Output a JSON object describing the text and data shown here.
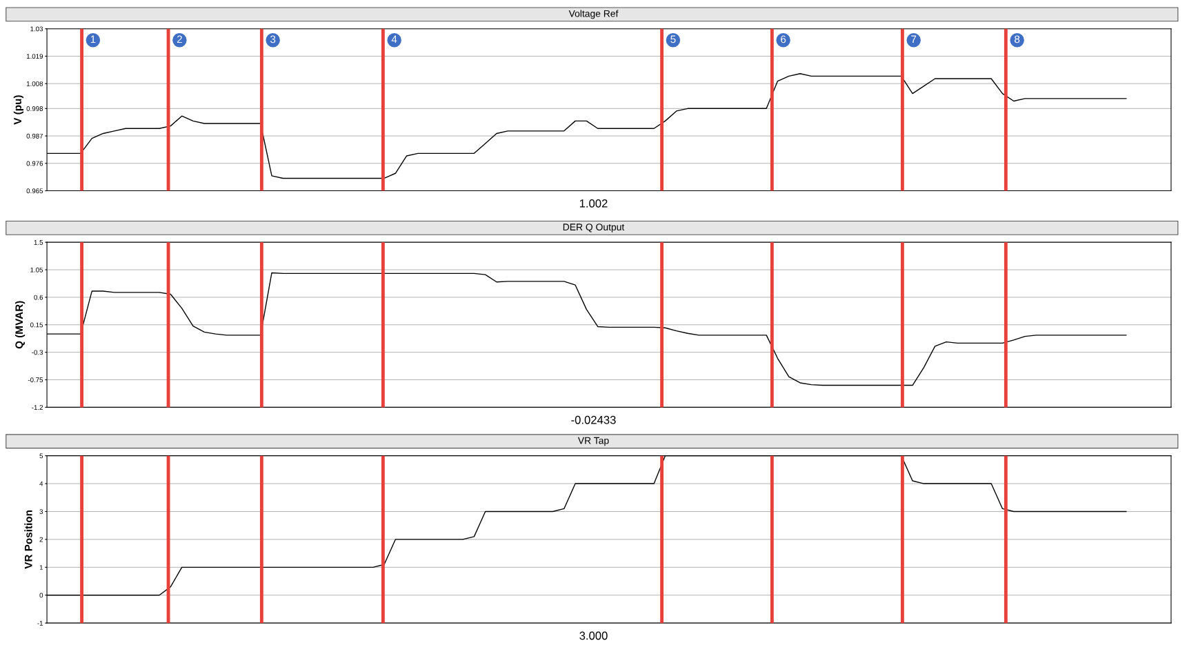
{
  "chart_data": [
    {
      "type": "line",
      "title": "Voltage Ref",
      "ylabel": "V (pu)",
      "categories": [
        null,
        null,
        null,
        null,
        null,
        null,
        null,
        null,
        null,
        null,
        null,
        null,
        null,
        null,
        null,
        null,
        null,
        null,
        null,
        null,
        null,
        null,
        null,
        null,
        null,
        null,
        null,
        null,
        null,
        null,
        null,
        null,
        null,
        null,
        null,
        null,
        null,
        null,
        null,
        null,
        null,
        null,
        null,
        null,
        null,
        null,
        null,
        null,
        null,
        null,
        null,
        null,
        null,
        null,
        null,
        null,
        null,
        null,
        null,
        null,
        null,
        null,
        null,
        null,
        null,
        null,
        null,
        null,
        null,
        null,
        null,
        null,
        null,
        null,
        null,
        null,
        null,
        null,
        null,
        null,
        null,
        null,
        null,
        null,
        null,
        null,
        null,
        null,
        null,
        null,
        null,
        null,
        null,
        null,
        null,
        null,
        null,
        null,
        null,
        null,
        null
      ],
      "series": [
        {
          "color": "#000000",
          "values": [
            0.98,
            0.98,
            0.98,
            0.98,
            0.986,
            0.988,
            0.989,
            0.99,
            0.99,
            0.99,
            0.99,
            0.991,
            0.995,
            0.993,
            0.992,
            0.992,
            0.992,
            0.992,
            0.992,
            0.992,
            0.971,
            0.97,
            0.97,
            0.97,
            0.97,
            0.97,
            0.97,
            0.97,
            0.97,
            0.97,
            0.97,
            0.972,
            0.979,
            0.98,
            0.98,
            0.98,
            0.98,
            0.98,
            0.98,
            0.984,
            0.988,
            0.989,
            0.989,
            0.989,
            0.989,
            0.989,
            0.989,
            0.993,
            0.993,
            0.99,
            0.99,
            0.99,
            0.99,
            0.99,
            0.99,
            0.993,
            0.997,
            0.998,
            0.998,
            0.998,
            0.998,
            0.998,
            0.998,
            0.998,
            0.998,
            1.009,
            1.011,
            1.012,
            1.011,
            1.011,
            1.011,
            1.011,
            1.011,
            1.011,
            1.011,
            1.011,
            1.011,
            1.004,
            1.007,
            1.01,
            1.01,
            1.01,
            1.01,
            1.01,
            1.01,
            1.004,
            1.001,
            1.002,
            1.002,
            1.002,
            1.002,
            1.002,
            1.002,
            1.002,
            1.002,
            1.002,
            1.002,
            null,
            null,
            null,
            null
          ]
        }
      ],
      "ylim": [
        0.965,
        1.03
      ],
      "yticks": [
        0.965,
        0.976,
        0.987,
        0.998,
        1.008,
        1.019,
        1.03
      ],
      "grid": "y",
      "tick_labels": "y",
      "annotations": [
        "1",
        "2",
        "3",
        "4",
        "5",
        "6",
        "7",
        "8",
        "1.002"
      ]
    },
    {
      "type": "line",
      "title": "DER Q Output",
      "ylabel": "Q (MVAR)",
      "categories": [
        null,
        null,
        null,
        null,
        null,
        null,
        null,
        null,
        null,
        null,
        null,
        null,
        null,
        null,
        null,
        null,
        null,
        null,
        null,
        null,
        null,
        null,
        null,
        null,
        null,
        null,
        null,
        null,
        null,
        null,
        null,
        null,
        null,
        null,
        null,
        null,
        null,
        null,
        null,
        null,
        null,
        null,
        null,
        null,
        null,
        null,
        null,
        null,
        null,
        null,
        null,
        null,
        null,
        null,
        null,
        null,
        null,
        null,
        null,
        null,
        null,
        null,
        null,
        null,
        null,
        null,
        null,
        null,
        null,
        null,
        null,
        null,
        null,
        null,
        null,
        null,
        null,
        null,
        null,
        null,
        null,
        null,
        null,
        null,
        null,
        null,
        null,
        null,
        null,
        null,
        null,
        null,
        null,
        null,
        null,
        null,
        null,
        null,
        null,
        null,
        null
      ],
      "series": [
        {
          "color": "#000000",
          "values": [
            0.0,
            0.0,
            0.0,
            0.0,
            0.7,
            0.7,
            0.68,
            0.68,
            0.68,
            0.68,
            0.68,
            0.65,
            0.42,
            0.13,
            0.03,
            0.0,
            -0.02,
            -0.02,
            -0.02,
            -0.02,
            1.0,
            0.99,
            0.99,
            0.99,
            0.99,
            0.99,
            0.99,
            0.99,
            0.99,
            0.99,
            0.99,
            0.99,
            0.99,
            0.99,
            0.99,
            0.99,
            0.99,
            0.99,
            0.99,
            0.97,
            0.85,
            0.86,
            0.86,
            0.86,
            0.86,
            0.86,
            0.86,
            0.8,
            0.4,
            0.12,
            0.11,
            0.11,
            0.11,
            0.11,
            0.11,
            0.1,
            0.05,
            0.01,
            -0.02,
            -0.02,
            -0.02,
            -0.02,
            -0.02,
            -0.02,
            -0.02,
            -0.4,
            -0.7,
            -0.8,
            -0.83,
            -0.84,
            -0.84,
            -0.84,
            -0.84,
            -0.84,
            -0.84,
            -0.84,
            -0.84,
            -0.84,
            -0.55,
            -0.2,
            -0.13,
            -0.15,
            -0.15,
            -0.15,
            -0.15,
            -0.15,
            -0.1,
            -0.04,
            -0.02,
            -0.02,
            -0.02,
            -0.02,
            -0.02,
            -0.02,
            -0.02,
            -0.02,
            -0.02,
            null,
            null,
            null,
            null
          ]
        }
      ],
      "ylim": [
        -1.2,
        1.5
      ],
      "yticks": [
        -1.2,
        -0.75,
        -0.3,
        0.15,
        0.6,
        1.05,
        1.5
      ],
      "grid": "y",
      "tick_labels": "y",
      "annotations": [
        "-0.02433"
      ]
    },
    {
      "type": "line",
      "title": "VR Tap",
      "ylabel": "VR Position",
      "categories": [
        null,
        null,
        null,
        null,
        null,
        null,
        null,
        null,
        null,
        null,
        null,
        null,
        null,
        null,
        null,
        null,
        null,
        null,
        null,
        null,
        null,
        null,
        null,
        null,
        null,
        null,
        null,
        null,
        null,
        null,
        null,
        null,
        null,
        null,
        null,
        null,
        null,
        null,
        null,
        null,
        null,
        null,
        null,
        null,
        null,
        null,
        null,
        null,
        null,
        null,
        null,
        null,
        null,
        null,
        null,
        null,
        null,
        null,
        null,
        null,
        null,
        null,
        null,
        null,
        null,
        null,
        null,
        null,
        null,
        null,
        null,
        null,
        null,
        null,
        null,
        null,
        null,
        null,
        null,
        null,
        null,
        null,
        null,
        null,
        null,
        null,
        null,
        null,
        null,
        null,
        null,
        null,
        null,
        null,
        null,
        null,
        null,
        null,
        null,
        null,
        null
      ],
      "series": [
        {
          "color": "#000000",
          "values": [
            0,
            0,
            0,
            0,
            0,
            0,
            0,
            0,
            0,
            0,
            0,
            0.3,
            1,
            1,
            1,
            1,
            1,
            1,
            1,
            1,
            1,
            1,
            1,
            1,
            1,
            1,
            1,
            1,
            1,
            1,
            1.1,
            2,
            2,
            2,
            2,
            2,
            2,
            2,
            2.1,
            3,
            3,
            3,
            3,
            3,
            3,
            3,
            3.1,
            4,
            4,
            4,
            4,
            4,
            4,
            4,
            4,
            5,
            5,
            5,
            5,
            5,
            5,
            5,
            5,
            5,
            5,
            5,
            5,
            5,
            5,
            5,
            5,
            5,
            5,
            5,
            5,
            5,
            5,
            4.1,
            4,
            4,
            4,
            4,
            4,
            4,
            4,
            3.1,
            3,
            3,
            3,
            3,
            3,
            3,
            3,
            3,
            3,
            3,
            3,
            null,
            null,
            null,
            null
          ]
        }
      ],
      "ylim": [
        -1,
        5
      ],
      "yticks": [
        -1,
        0,
        1,
        2,
        3,
        4,
        5
      ],
      "grid": "y",
      "tick_labels": "y",
      "annotations": [
        "3.000"
      ]
    }
  ]
}
